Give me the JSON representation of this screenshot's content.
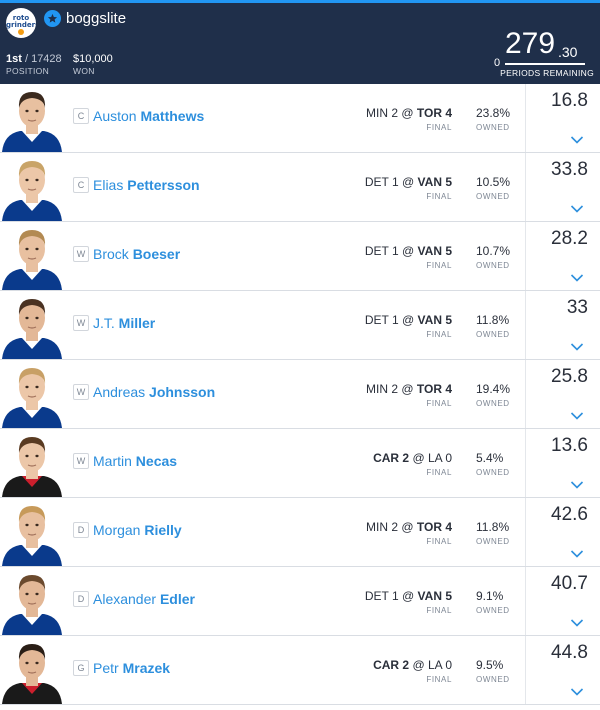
{
  "header": {
    "logo_line1": "roto",
    "logo_line2": "grinders",
    "username": "boggslite",
    "position_rank": "1st",
    "position_total": " / 17428",
    "position_label": "POSITION",
    "won_value": "$10,000",
    "won_label": "WON",
    "periods_remaining_value": "0",
    "score_main": "279",
    "score_dec": ".30",
    "periods_label": "PERIODS REMAINING",
    "colors": {
      "bar": "#1f2f4a",
      "accent": "#2196f3"
    }
  },
  "players": [
    {
      "pos": "C",
      "first": "Auston",
      "last": "Matthews",
      "away": "MIN 2",
      "at": " @ ",
      "home": "TOR 4",
      "winner": "home",
      "status": "FINAL",
      "owned": "23.8%",
      "owned_label": "OWNED",
      "points": "16.8",
      "jersey": "#0a3a8c",
      "trim": "#ffffff",
      "hair": "#3b2a1e",
      "skin": "#e8c0a0"
    },
    {
      "pos": "C",
      "first": "Elias",
      "last": "Pettersson",
      "away": "DET 1",
      "at": " @ ",
      "home": "VAN 5",
      "winner": "home",
      "status": "FINAL",
      "owned": "10.5%",
      "owned_label": "OWNED",
      "points": "33.8",
      "jersey": "#0a3a8c",
      "trim": "#ffffff",
      "hair": "#c9a468",
      "skin": "#ecc7a8"
    },
    {
      "pos": "W",
      "first": "Brock",
      "last": "Boeser",
      "away": "DET 1",
      "at": " @ ",
      "home": "VAN 5",
      "winner": "home",
      "status": "FINAL",
      "owned": "10.7%",
      "owned_label": "OWNED",
      "points": "28.2",
      "jersey": "#0a3a8c",
      "trim": "#ffffff",
      "hair": "#b38a52",
      "skin": "#e8c0a0"
    },
    {
      "pos": "W",
      "first": "J.T.",
      "last": "Miller",
      "away": "DET 1",
      "at": " @ ",
      "home": "VAN 5",
      "winner": "home",
      "status": "FINAL",
      "owned": "11.8%",
      "owned_label": "OWNED",
      "points": "33",
      "jersey": "#0a3a8c",
      "trim": "#ffffff",
      "hair": "#4a3222",
      "skin": "#e3b897"
    },
    {
      "pos": "W",
      "first": "Andreas",
      "last": "Johnsson",
      "away": "MIN 2",
      "at": " @ ",
      "home": "TOR 4",
      "winner": "home",
      "status": "FINAL",
      "owned": "19.4%",
      "owned_label": "OWNED",
      "points": "25.8",
      "jersey": "#0a3a8c",
      "trim": "#ffffff",
      "hair": "#c8a066",
      "skin": "#ecc7a8"
    },
    {
      "pos": "W",
      "first": "Martin",
      "last": "Necas",
      "away": "CAR 2",
      "at": " @ ",
      "home": "LA 0",
      "winner": "away",
      "status": "FINAL",
      "owned": "5.4%",
      "owned_label": "OWNED",
      "points": "13.6",
      "jersey": "#1a1a1a",
      "trim": "#cc1f2d",
      "hair": "#5a3b22",
      "skin": "#ecc7a8"
    },
    {
      "pos": "D",
      "first": "Morgan",
      "last": "Rielly",
      "away": "MIN 2",
      "at": " @ ",
      "home": "TOR 4",
      "winner": "home",
      "status": "FINAL",
      "owned": "11.8%",
      "owned_label": "OWNED",
      "points": "42.6",
      "jersey": "#0a3a8c",
      "trim": "#ffffff",
      "hair": "#c79a5a",
      "skin": "#e8c0a0"
    },
    {
      "pos": "D",
      "first": "Alexander",
      "last": "Edler",
      "away": "DET 1",
      "at": " @ ",
      "home": "VAN 5",
      "winner": "home",
      "status": "FINAL",
      "owned": "9.1%",
      "owned_label": "OWNED",
      "points": "40.7",
      "jersey": "#0a3a8c",
      "trim": "#ffffff",
      "hair": "#6b4a2e",
      "skin": "#e3b897"
    },
    {
      "pos": "G",
      "first": "Petr",
      "last": "Mrazek",
      "away": "CAR 2",
      "at": " @ ",
      "home": "LA 0",
      "winner": "away",
      "status": "FINAL",
      "owned": "9.5%",
      "owned_label": "OWNED",
      "points": "44.8",
      "jersey": "#1a1a1a",
      "trim": "#cc1f2d",
      "hair": "#2a1e16",
      "skin": "#e3b897"
    }
  ]
}
